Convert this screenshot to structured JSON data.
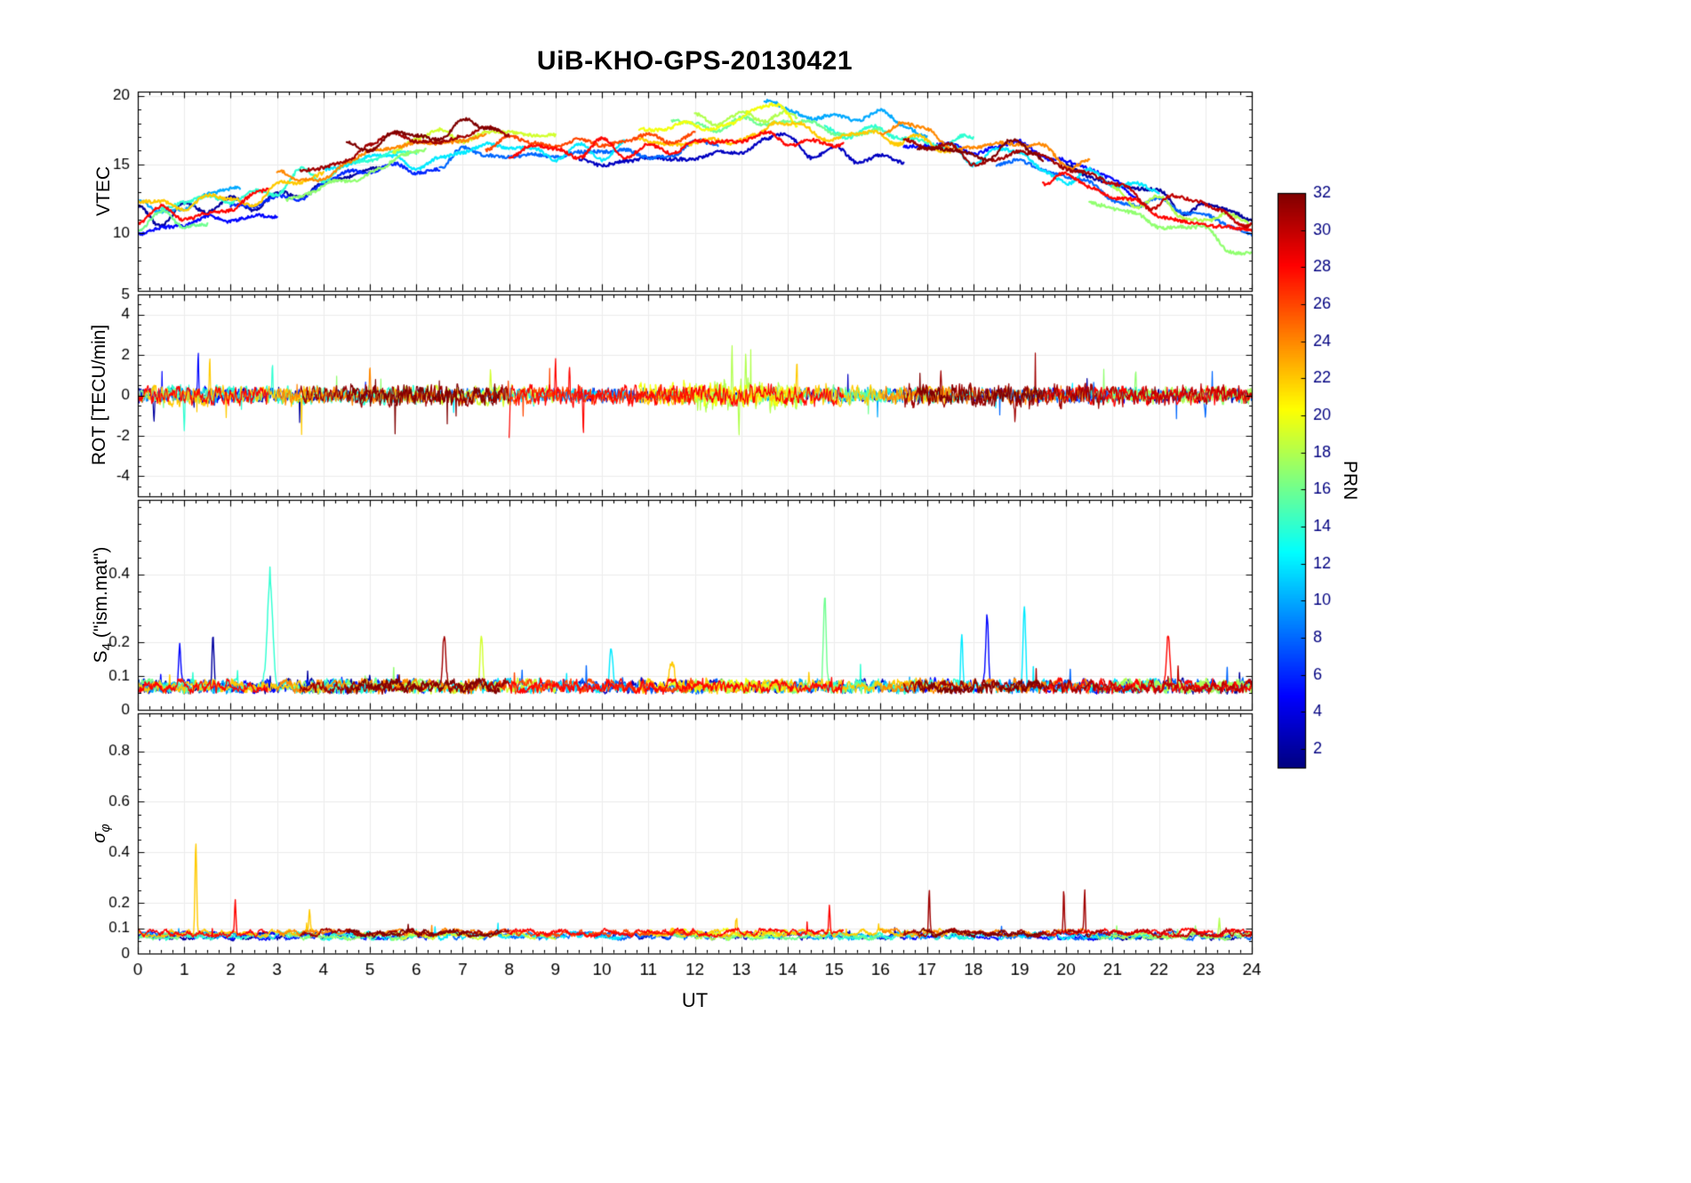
{
  "figure": {
    "title": "UiB-KHO-GPS-20130421",
    "xlabel": "UT",
    "bg_color": "#ffffff",
    "axis_color": "#000000",
    "grid_color": "#ececec",
    "xticks": [
      0,
      1,
      2,
      3,
      4,
      5,
      6,
      7,
      8,
      9,
      10,
      11,
      12,
      13,
      14,
      15,
      16,
      17,
      18,
      19,
      20,
      21,
      22,
      23,
      24
    ],
    "colorbar": {
      "label": "PRN",
      "range": [
        1,
        32
      ],
      "ticks": [
        2,
        4,
        6,
        8,
        10,
        12,
        14,
        16,
        18,
        20,
        22,
        24,
        26,
        28,
        30,
        32
      ],
      "cmap": "jet",
      "cmap_anchors": [
        "#00008f",
        "#0000ff",
        "#00ffff",
        "#80ff80",
        "#ffff00",
        "#ff0000",
        "#800000"
      ]
    }
  },
  "shared_passes": [
    {
      "prn": 2,
      "t0": 0,
      "t1": 5.2,
      "off": -0.5,
      "ra": 0.22
    },
    {
      "prn": 5,
      "t0": 0,
      "t1": 3.0,
      "off": -1.2,
      "ra": 0.25
    },
    {
      "prn": 5,
      "t0": 16.5,
      "t1": 21.5,
      "off": 0.3,
      "ra": 0.2
    },
    {
      "prn": 10,
      "t0": 0,
      "t1": 2.2,
      "off": 0.2,
      "ra": 0.2
    },
    {
      "prn": 12,
      "t0": 4.0,
      "t1": 10.5,
      "off": -0.3,
      "ra": 0.2
    },
    {
      "prn": 12,
      "t0": 17.5,
      "t1": 22.0,
      "off": 0.1,
      "ra": 0.22
    },
    {
      "prn": 14,
      "t0": 0.5,
      "t1": 6.0,
      "off": 0.4,
      "ra": 0.3
    },
    {
      "prn": 14,
      "t0": 14.8,
      "t1": 18.0,
      "off": 1.0,
      "ra": 0.22
    },
    {
      "prn": 16,
      "t0": 11.5,
      "t1": 16.0,
      "off": 1.2,
      "ra": 0.28
    },
    {
      "prn": 16,
      "t0": 0,
      "t1": 1.5,
      "off": -0.8,
      "ra": 0.2
    },
    {
      "prn": 17,
      "t0": 3.2,
      "t1": 6.2,
      "off": -0.6,
      "ra": 0.2
    },
    {
      "prn": 17,
      "t0": 20.5,
      "t1": 24,
      "off": -1.8,
      "ra": 0.25
    },
    {
      "prn": 19,
      "t0": 5.5,
      "t1": 9.0,
      "off": 0.8,
      "ra": 0.3
    },
    {
      "prn": 18,
      "t0": 21.0,
      "t1": 24,
      "off": -0.5,
      "ra": 0.25
    },
    {
      "prn": 20,
      "t0": 10.8,
      "t1": 14.2,
      "off": 1.0,
      "ra": 0.4
    },
    {
      "prn": 22,
      "t0": 0,
      "t1": 4.0,
      "off": 0.0,
      "ra": 0.3
    },
    {
      "prn": 22,
      "t0": 10.8,
      "t1": 17.5,
      "off": 0.3,
      "ra": 0.3
    },
    {
      "prn": 24,
      "t0": 3.0,
      "t1": 7.5,
      "off": 0.5,
      "ra": 0.25
    },
    {
      "prn": 24,
      "t0": 16.0,
      "t1": 20.5,
      "off": 1.1,
      "ra": 0.25
    },
    {
      "prn": 28,
      "t0": 0,
      "t1": 2.8,
      "off": -0.4,
      "ra": 0.28
    },
    {
      "prn": 28,
      "t0": 8.0,
      "t1": 15.2,
      "off": -0.2,
      "ra": 0.32
    },
    {
      "prn": 28,
      "t0": 19.5,
      "t1": 24,
      "off": -0.7,
      "ra": 0.28
    },
    {
      "prn": 31,
      "t0": 3.5,
      "t1": 8.0,
      "off": 1.3,
      "ra": 0.3
    },
    {
      "prn": 31,
      "t0": 16.5,
      "t1": 20.8,
      "off": 0.2,
      "ra": 0.38
    },
    {
      "prn": 32,
      "t0": 4.5,
      "t1": 7.8,
      "off": 1.5,
      "ra": 0.3
    },
    {
      "prn": 32,
      "t0": 16.8,
      "t1": 19.5,
      "off": 0.4,
      "ra": 0.3
    },
    {
      "prn": 8,
      "t0": 6.5,
      "t1": 12.5,
      "off": -0.5,
      "ra": 0.2
    },
    {
      "prn": 3,
      "t0": 9.5,
      "t1": 16.5,
      "off": -0.8,
      "ra": 0.2
    },
    {
      "prn": 10,
      "t0": 13.5,
      "t1": 17.0,
      "off": 1.3,
      "ra": 0.22
    },
    {
      "prn": 8,
      "t0": 18.5,
      "t1": 24,
      "off": -0.3,
      "ra": 0.22
    },
    {
      "prn": 2,
      "t0": 20.0,
      "t1": 24,
      "off": 0.2,
      "ra": 0.22
    },
    {
      "prn": 18,
      "t0": 12.0,
      "t1": 14.2,
      "off": 1.4,
      "ra": 0.5
    },
    {
      "prn": 30,
      "t0": 20.8,
      "t1": 24,
      "off": -0.2,
      "ra": 0.3
    },
    {
      "prn": 26,
      "t0": 7.5,
      "t1": 12.0,
      "off": 0.6,
      "ra": 0.25
    },
    {
      "prn": 6,
      "t0": 2.0,
      "t1": 6.5,
      "off": -0.9,
      "ra": 0.2
    }
  ],
  "chart_data": [
    {
      "type": "line",
      "name": "VTEC",
      "ylabel": "VTEC",
      "ylim": [
        5.8,
        20.3
      ],
      "yticks": [
        20,
        15,
        10
      ],
      "ytick_minor": 1,
      "x_range": [
        0,
        24
      ],
      "series_note": "One trace per GPS satellite pass, colored by PRN (jet colormap 1-32). Traces follow the diurnal envelope plus per-pass offset.",
      "envelope": {
        "t": [
          0,
          1,
          2,
          3,
          4,
          5,
          6,
          7,
          8,
          9,
          10,
          11,
          12,
          13,
          13.7,
          14.5,
          15,
          16,
          17,
          18,
          19,
          20,
          21,
          22,
          23,
          24
        ],
        "v": [
          11.6,
          12.0,
          12.4,
          13.2,
          14.2,
          15.2,
          15.8,
          16.0,
          16.2,
          16.3,
          16.4,
          16.3,
          16.4,
          17.2,
          17.6,
          16.8,
          16.6,
          16.9,
          16.2,
          15.6,
          15.9,
          14.3,
          13.2,
          12.4,
          11.6,
          10.9
        ]
      }
    },
    {
      "type": "line",
      "name": "ROT",
      "ylabel": "ROT [TECU/min]",
      "ylim": [
        -5,
        5
      ],
      "yticks": [
        5,
        4,
        2,
        0,
        -2,
        -4
      ],
      "ytick_minor": 0.5,
      "x_range": [
        0,
        24
      ],
      "baseline": 0,
      "series_note": "Rate of TEC change; high-frequency noise about 0 TECU/min, +/-0.5 typical, bursts to +/-2.5.",
      "spikes": [
        {
          "t": 0.35,
          "v": -1.3,
          "prn": 2
        },
        {
          "t": 1.3,
          "v": 2.4,
          "prn": 5
        },
        {
          "t": 1.55,
          "v": 1.9,
          "prn": 22
        },
        {
          "t": 1.0,
          "v": -1.5,
          "prn": 14
        },
        {
          "t": 2.9,
          "v": 1.6,
          "prn": 14
        },
        {
          "t": 5.0,
          "v": 1.2,
          "prn": 24
        },
        {
          "t": 7.6,
          "v": 1.3,
          "prn": 19
        },
        {
          "t": 8.0,
          "v": -1.8,
          "prn": 28
        },
        {
          "t": 9.0,
          "v": 1.5,
          "prn": 28
        },
        {
          "t": 9.3,
          "v": 1.8,
          "prn": 28
        },
        {
          "t": 9.6,
          "v": -1.6,
          "prn": 28
        },
        {
          "t": 12.8,
          "v": 2.5,
          "prn": 18
        },
        {
          "t": 12.95,
          "v": -2.2,
          "prn": 18
        },
        {
          "t": 13.1,
          "v": 1.8,
          "prn": 18
        },
        {
          "t": 14.2,
          "v": 1.5,
          "prn": 22
        },
        {
          "t": 17.3,
          "v": 1.4,
          "prn": 31
        },
        {
          "t": 18.9,
          "v": -1.7,
          "prn": 31
        },
        {
          "t": 21.5,
          "v": 1.0,
          "prn": 17
        },
        {
          "t": 23.0,
          "v": -1.0,
          "prn": 8
        }
      ]
    },
    {
      "type": "line",
      "name": "S4",
      "ylabel_parts": {
        "base": "S",
        "sub": "4",
        "suffix": " (\"ism.mat\")"
      },
      "ylim": [
        0,
        0.62
      ],
      "yticks": [
        0.4,
        0.2,
        0.1,
        0
      ],
      "ytick_minor": 0.05,
      "x_range": [
        0,
        24
      ],
      "baseline": 0.055,
      "series_note": "Amplitude scintillation index; baseline 0.05-0.1 with isolated spikes listed below (peak = baseline + v).",
      "spikes": [
        {
          "t": 0.9,
          "v": 0.13,
          "prn": 5,
          "w": 0.03
        },
        {
          "t": 1.62,
          "v": 0.16,
          "prn": 2,
          "w": 0.03
        },
        {
          "t": 2.85,
          "v": 0.3,
          "prn": 14,
          "w": 0.08
        },
        {
          "t": 6.6,
          "v": 0.16,
          "prn": 31,
          "w": 0.05
        },
        {
          "t": 7.4,
          "v": 0.15,
          "prn": 19,
          "w": 0.04
        },
        {
          "t": 10.2,
          "v": 0.12,
          "prn": 12,
          "w": 0.04
        },
        {
          "t": 11.5,
          "v": 0.08,
          "prn": 22,
          "w": 0.08
        },
        {
          "t": 14.8,
          "v": 0.25,
          "prn": 16,
          "w": 0.04
        },
        {
          "t": 17.75,
          "v": 0.16,
          "prn": 12,
          "w": 0.03
        },
        {
          "t": 18.3,
          "v": 0.22,
          "prn": 5,
          "w": 0.04
        },
        {
          "t": 19.1,
          "v": 0.25,
          "prn": 12,
          "w": 0.04
        },
        {
          "t": 22.2,
          "v": 0.15,
          "prn": 28,
          "w": 0.05
        }
      ]
    },
    {
      "type": "line",
      "name": "sigma_phi",
      "ylabel_parts": {
        "base": "σ",
        "sub": "φ"
      },
      "ylim": [
        0,
        0.95
      ],
      "yticks": [
        0.8,
        0.6,
        0.4,
        0.2,
        0.1,
        0
      ],
      "ytick_minor": 0.05,
      "x_range": [
        0,
        24
      ],
      "baseline": 0.07,
      "series_note": "Phase scintillation index; flat baseline ~0.07-0.1 with isolated spikes listed below (peak = baseline + v).",
      "spikes": [
        {
          "t": 1.25,
          "v": 0.37,
          "prn": 22,
          "w": 0.025
        },
        {
          "t": 2.1,
          "v": 0.13,
          "prn": 28,
          "w": 0.02
        },
        {
          "t": 3.7,
          "v": 0.08,
          "prn": 22,
          "w": 0.02
        },
        {
          "t": 12.9,
          "v": 0.06,
          "prn": 22,
          "w": 0.02
        },
        {
          "t": 14.9,
          "v": 0.11,
          "prn": 28,
          "w": 0.02
        },
        {
          "t": 17.05,
          "v": 0.17,
          "prn": 31,
          "w": 0.02
        },
        {
          "t": 19.95,
          "v": 0.17,
          "prn": 31,
          "w": 0.018
        },
        {
          "t": 20.4,
          "v": 0.17,
          "prn": 31,
          "w": 0.018
        },
        {
          "t": 23.3,
          "v": 0.07,
          "prn": 18,
          "w": 0.02
        }
      ]
    }
  ]
}
